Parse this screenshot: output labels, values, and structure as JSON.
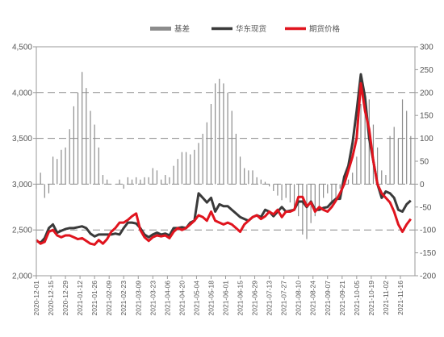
{
  "chart_data": {
    "type": "line",
    "title": "",
    "xlabel": "",
    "ylabel": "",
    "y2label": "",
    "ylim": [
      2000,
      4500
    ],
    "y2lim": [
      -200,
      300
    ],
    "yticks": [
      "2,000",
      "2,500",
      "3,000",
      "3,500",
      "4,000",
      "4,500"
    ],
    "y2ticks": [
      "-200",
      "-150",
      "-100",
      "-50",
      "0",
      "50",
      "100",
      "150",
      "200",
      "250",
      "300"
    ],
    "y2_gridlines_dashed": [
      -100,
      0,
      100,
      200
    ],
    "xlim": [
      "2020-12-01",
      "2021-11-30"
    ],
    "xticks": [
      "2020-12-01",
      "2020-12-15",
      "2020-12-29",
      "2021-01-12",
      "2021-01-26",
      "2021-02-09",
      "2021-02-23",
      "2021-03-09",
      "2021-03-23",
      "2021-04-06",
      "2021-04-20",
      "2021-05-04",
      "2021-05-18",
      "2021-06-01",
      "2021-06-15",
      "2021-06-29",
      "2021-07-13",
      "2021-07-27",
      "2021-08-10",
      "2021-08-24",
      "2021-09-07",
      "2021-09-21",
      "2021-10-05",
      "2021-10-19",
      "2021-11-02",
      "2021-11-16"
    ],
    "legend_position": "top",
    "legend": [
      {
        "label": "基差",
        "color": "#8c8c8c",
        "kind": "bar"
      },
      {
        "label": "华东现货",
        "color": "#3a3a3a",
        "kind": "line"
      },
      {
        "label": "期货价格",
        "color": "#e0141e",
        "kind": "line"
      }
    ],
    "series": [
      {
        "name": "基差",
        "axis": "right",
        "kind": "bar",
        "color": "#8c8c8c",
        "x": [
          "2020-12-01",
          "2020-12-05",
          "2020-12-09",
          "2020-12-13",
          "2020-12-17",
          "2020-12-21",
          "2020-12-25",
          "2020-12-29",
          "2021-01-02",
          "2021-01-06",
          "2021-01-10",
          "2021-01-14",
          "2021-01-18",
          "2021-01-22",
          "2021-01-26",
          "2021-01-30",
          "2021-02-03",
          "2021-02-07",
          "2021-02-11",
          "2021-02-15",
          "2021-02-19",
          "2021-02-23",
          "2021-02-27",
          "2021-03-03",
          "2021-03-07",
          "2021-03-11",
          "2021-03-15",
          "2021-03-19",
          "2021-03-23",
          "2021-03-27",
          "2021-03-31",
          "2021-04-04",
          "2021-04-08",
          "2021-04-12",
          "2021-04-16",
          "2021-04-20",
          "2021-04-24",
          "2021-04-28",
          "2021-05-02",
          "2021-05-06",
          "2021-05-10",
          "2021-05-14",
          "2021-05-18",
          "2021-05-22",
          "2021-05-26",
          "2021-05-30",
          "2021-06-03",
          "2021-06-07",
          "2021-06-11",
          "2021-06-15",
          "2021-06-19",
          "2021-06-23",
          "2021-06-27",
          "2021-07-01",
          "2021-07-05",
          "2021-07-09",
          "2021-07-13",
          "2021-07-17",
          "2021-07-21",
          "2021-07-25",
          "2021-07-29",
          "2021-08-02",
          "2021-08-06",
          "2021-08-10",
          "2021-08-14",
          "2021-08-18",
          "2021-08-22",
          "2021-08-26",
          "2021-08-30",
          "2021-09-03",
          "2021-09-07",
          "2021-09-11",
          "2021-09-15",
          "2021-09-19",
          "2021-09-23",
          "2021-09-27",
          "2021-10-01",
          "2021-10-05",
          "2021-10-09",
          "2021-10-13",
          "2021-10-17",
          "2021-10-21",
          "2021-10-25",
          "2021-10-29",
          "2021-11-02",
          "2021-11-06",
          "2021-11-10",
          "2021-11-14",
          "2021-11-18",
          "2021-11-22",
          "2021-11-26"
        ],
        "values": [
          -10,
          25,
          -30,
          -20,
          60,
          55,
          75,
          80,
          120,
          170,
          200,
          245,
          210,
          160,
          130,
          80,
          20,
          10,
          0,
          0,
          10,
          -10,
          15,
          10,
          15,
          10,
          15,
          15,
          35,
          30,
          10,
          20,
          15,
          40,
          55,
          70,
          70,
          65,
          75,
          90,
          110,
          135,
          175,
          220,
          230,
          220,
          200,
          160,
          110,
          60,
          35,
          30,
          30,
          15,
          10,
          5,
          -5,
          -15,
          -25,
          -35,
          -30,
          -40,
          -50,
          -70,
          -110,
          -120,
          -85,
          -70,
          -50,
          -30,
          -20,
          -40,
          -30,
          -10,
          0,
          10,
          25,
          60,
          175,
          200,
          185,
          130,
          80,
          30,
          20,
          105,
          125,
          100,
          185,
          160,
          105
        ]
      },
      {
        "name": "华东现货",
        "axis": "left",
        "kind": "line",
        "color": "#3a3a3a",
        "x": [
          "2020-12-01",
          "2020-12-05",
          "2020-12-09",
          "2020-12-13",
          "2020-12-17",
          "2020-12-21",
          "2020-12-25",
          "2020-12-29",
          "2021-01-02",
          "2021-01-06",
          "2021-01-10",
          "2021-01-14",
          "2021-01-18",
          "2021-01-22",
          "2021-01-26",
          "2021-01-30",
          "2021-02-03",
          "2021-02-07",
          "2021-02-11",
          "2021-02-15",
          "2021-02-19",
          "2021-02-23",
          "2021-02-27",
          "2021-03-03",
          "2021-03-07",
          "2021-03-11",
          "2021-03-15",
          "2021-03-19",
          "2021-03-23",
          "2021-03-27",
          "2021-03-31",
          "2021-04-04",
          "2021-04-08",
          "2021-04-12",
          "2021-04-16",
          "2021-04-20",
          "2021-04-24",
          "2021-04-28",
          "2021-05-02",
          "2021-05-06",
          "2021-05-10",
          "2021-05-14",
          "2021-05-18",
          "2021-05-22",
          "2021-05-26",
          "2021-05-30",
          "2021-06-03",
          "2021-06-07",
          "2021-06-11",
          "2021-06-15",
          "2021-06-19",
          "2021-06-23",
          "2021-06-27",
          "2021-07-01",
          "2021-07-05",
          "2021-07-09",
          "2021-07-13",
          "2021-07-17",
          "2021-07-21",
          "2021-07-25",
          "2021-07-29",
          "2021-08-02",
          "2021-08-06",
          "2021-08-10",
          "2021-08-14",
          "2021-08-18",
          "2021-08-22",
          "2021-08-26",
          "2021-08-30",
          "2021-09-03",
          "2021-09-07",
          "2021-09-11",
          "2021-09-15",
          "2021-09-19",
          "2021-09-23",
          "2021-09-27",
          "2021-10-01",
          "2021-10-05",
          "2021-10-09",
          "2021-10-13",
          "2021-10-17",
          "2021-10-21",
          "2021-10-25",
          "2021-10-29",
          "2021-11-02",
          "2021-11-06",
          "2021-11-10",
          "2021-11-14",
          "2021-11-18",
          "2021-11-22",
          "2021-11-26"
        ],
        "values": [
          2380,
          2360,
          2410,
          2520,
          2560,
          2470,
          2490,
          2510,
          2520,
          2520,
          2530,
          2540,
          2520,
          2460,
          2430,
          2450,
          2450,
          2450,
          2450,
          2460,
          2450,
          2520,
          2580,
          2580,
          2570,
          2520,
          2450,
          2420,
          2450,
          2470,
          2450,
          2460,
          2440,
          2520,
          2520,
          2530,
          2520,
          2580,
          2600,
          2900,
          2850,
          2800,
          2850,
          2700,
          2780,
          2760,
          2760,
          2720,
          2680,
          2640,
          2620,
          2600,
          2640,
          2660,
          2640,
          2720,
          2700,
          2650,
          2700,
          2750,
          2700,
          2710,
          2720,
          2810,
          2810,
          2750,
          2810,
          2720,
          2720,
          2740,
          2750,
          2800,
          2840,
          2840,
          3080,
          3200,
          3450,
          3800,
          4200,
          3950,
          3500,
          3250,
          3000,
          2850,
          2920,
          2900,
          2850,
          2720,
          2700,
          2780,
          2820
        ]
      },
      {
        "name": "期货价格",
        "axis": "left",
        "kind": "line",
        "color": "#e0141e",
        "x": [
          "2020-12-01",
          "2020-12-05",
          "2020-12-09",
          "2020-12-13",
          "2020-12-17",
          "2020-12-21",
          "2020-12-25",
          "2020-12-29",
          "2021-01-02",
          "2021-01-06",
          "2021-01-10",
          "2021-01-14",
          "2021-01-18",
          "2021-01-22",
          "2021-01-26",
          "2021-01-30",
          "2021-02-03",
          "2021-02-07",
          "2021-02-11",
          "2021-02-15",
          "2021-02-19",
          "2021-02-23",
          "2021-02-27",
          "2021-03-03",
          "2021-03-07",
          "2021-03-11",
          "2021-03-15",
          "2021-03-19",
          "2021-03-23",
          "2021-03-27",
          "2021-03-31",
          "2021-04-04",
          "2021-04-08",
          "2021-04-12",
          "2021-04-16",
          "2021-04-20",
          "2021-04-24",
          "2021-04-28",
          "2021-05-02",
          "2021-05-06",
          "2021-05-10",
          "2021-05-14",
          "2021-05-18",
          "2021-05-22",
          "2021-05-26",
          "2021-05-30",
          "2021-06-03",
          "2021-06-07",
          "2021-06-11",
          "2021-06-15",
          "2021-06-19",
          "2021-06-23",
          "2021-06-27",
          "2021-07-01",
          "2021-07-05",
          "2021-07-09",
          "2021-07-13",
          "2021-07-17",
          "2021-07-21",
          "2021-07-25",
          "2021-07-29",
          "2021-08-02",
          "2021-08-06",
          "2021-08-10",
          "2021-08-14",
          "2021-08-18",
          "2021-08-22",
          "2021-08-26",
          "2021-08-30",
          "2021-09-03",
          "2021-09-07",
          "2021-09-11",
          "2021-09-15",
          "2021-09-19",
          "2021-09-23",
          "2021-09-27",
          "2021-10-01",
          "2021-10-05",
          "2021-10-09",
          "2021-10-13",
          "2021-10-17",
          "2021-10-21",
          "2021-10-25",
          "2021-10-29",
          "2021-11-02",
          "2021-11-06",
          "2021-11-10",
          "2021-11-14",
          "2021-11-18",
          "2021-11-22",
          "2021-11-26"
        ],
        "values": [
          2390,
          2350,
          2370,
          2480,
          2500,
          2440,
          2420,
          2440,
          2440,
          2420,
          2400,
          2410,
          2380,
          2350,
          2340,
          2390,
          2350,
          2400,
          2480,
          2520,
          2580,
          2580,
          2610,
          2650,
          2680,
          2500,
          2420,
          2380,
          2420,
          2440,
          2430,
          2440,
          2410,
          2480,
          2520,
          2500,
          2520,
          2560,
          2600,
          2660,
          2640,
          2600,
          2700,
          2600,
          2580,
          2560,
          2580,
          2560,
          2520,
          2480,
          2560,
          2600,
          2640,
          2660,
          2620,
          2650,
          2700,
          2670,
          2720,
          2640,
          2700,
          2700,
          2720,
          2860,
          2860,
          2760,
          2800,
          2700,
          2750,
          2720,
          2700,
          2750,
          2820,
          2900,
          3000,
          3150,
          3300,
          3500,
          4100,
          3800,
          3600,
          3250,
          3000,
          2900,
          2850,
          2800,
          2700,
          2560,
          2480,
          2560,
          2620
        ]
      }
    ]
  }
}
